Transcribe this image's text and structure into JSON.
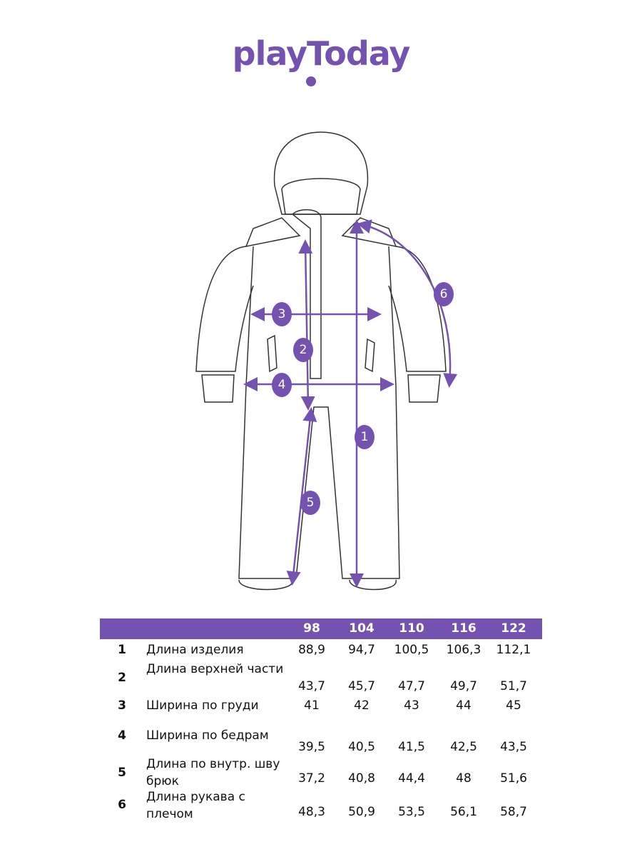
{
  "brand": {
    "logo_text": "playToday",
    "color": "#7453b0"
  },
  "diagram": {
    "markers": [
      "1",
      "2",
      "3",
      "4",
      "5",
      "6"
    ]
  },
  "table": {
    "sizes": [
      "98",
      "104",
      "110",
      "116",
      "122"
    ],
    "rows": [
      {
        "num": "1",
        "label": "Длина изделия",
        "values": [
          "88,9",
          "94,7",
          "100,5",
          "106,3",
          "112,1"
        ]
      },
      {
        "num": "2",
        "label": "Длина верхней части",
        "values": [
          "43,7",
          "45,7",
          "47,7",
          "49,7",
          "51,7"
        ]
      },
      {
        "num": "3",
        "label": "Ширина по груди",
        "values": [
          "41",
          "42",
          "43",
          "44",
          "45"
        ]
      },
      {
        "num": "4",
        "label": "Ширина по бедрам",
        "values": [
          "39,5",
          "40,5",
          "41,5",
          "42,5",
          "43,5"
        ]
      },
      {
        "num": "5",
        "label": "Длина по внутр. шву брюк",
        "values": [
          "37,2",
          "40,8",
          "44,4",
          "48",
          "51,6"
        ]
      },
      {
        "num": "6",
        "label": "Длина рукава с плечом",
        "values": [
          "48,3",
          "50,9",
          "53,5",
          "56,1",
          "58,7"
        ]
      }
    ]
  }
}
